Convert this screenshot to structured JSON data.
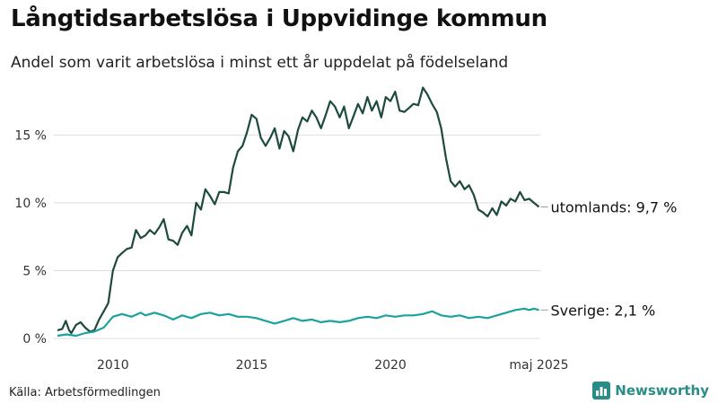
{
  "title": "Långtidsarbetslösa i Uppvidinge kommun",
  "subtitle": "Andel som varit arbetslösa i minst ett år uppdelat på födelseland",
  "source": "Källa: Arbetsförmedlingen",
  "brand": {
    "name": "Newsworthy",
    "icon": "bar-chart-logo-icon"
  },
  "colors": {
    "utomlands": "#1d4a3f",
    "sverige": "#1aa39a",
    "grid": "#dddddd",
    "brand": "#2a8c86"
  },
  "chart_data": {
    "type": "line",
    "ylim": [
      0,
      19
    ],
    "yticks": [
      {
        "value": 0,
        "label": "0 %"
      },
      {
        "value": 5,
        "label": "5 %"
      },
      {
        "value": 10,
        "label": "10 %"
      },
      {
        "value": 15,
        "label": "15 %"
      }
    ],
    "xticks": [
      {
        "value": 2010,
        "label": "2010"
      },
      {
        "value": 2015,
        "label": "2015"
      },
      {
        "value": 2020,
        "label": "2020"
      },
      {
        "value": 2025.35,
        "label": "maj 2025"
      }
    ],
    "xlim": [
      2008.0,
      2025.4
    ],
    "grid": "horizontal",
    "series": [
      {
        "name": "utomlands",
        "end_label": "utomlands: 9,7 %",
        "color": "#1d4a3f",
        "points": [
          [
            2008.0,
            0.6
          ],
          [
            2008.17,
            0.7
          ],
          [
            2008.3,
            1.3
          ],
          [
            2008.42,
            0.6
          ],
          [
            2008.5,
            0.4
          ],
          [
            2008.67,
            1.0
          ],
          [
            2008.83,
            1.2
          ],
          [
            2009.0,
            0.8
          ],
          [
            2009.17,
            0.5
          ],
          [
            2009.33,
            0.6
          ],
          [
            2009.5,
            1.4
          ],
          [
            2009.67,
            2.0
          ],
          [
            2009.83,
            2.6
          ],
          [
            2010.0,
            5.0
          ],
          [
            2010.17,
            6.0
          ],
          [
            2010.33,
            6.3
          ],
          [
            2010.5,
            6.6
          ],
          [
            2010.67,
            6.7
          ],
          [
            2010.83,
            8.0
          ],
          [
            2011.0,
            7.4
          ],
          [
            2011.17,
            7.6
          ],
          [
            2011.33,
            8.0
          ],
          [
            2011.5,
            7.7
          ],
          [
            2011.67,
            8.2
          ],
          [
            2011.83,
            8.8
          ],
          [
            2012.0,
            7.3
          ],
          [
            2012.17,
            7.2
          ],
          [
            2012.33,
            6.9
          ],
          [
            2012.5,
            7.8
          ],
          [
            2012.67,
            8.3
          ],
          [
            2012.83,
            7.6
          ],
          [
            2013.0,
            10.0
          ],
          [
            2013.17,
            9.5
          ],
          [
            2013.33,
            11.0
          ],
          [
            2013.5,
            10.5
          ],
          [
            2013.67,
            9.9
          ],
          [
            2013.83,
            10.8
          ],
          [
            2014.0,
            10.8
          ],
          [
            2014.17,
            10.7
          ],
          [
            2014.33,
            12.6
          ],
          [
            2014.5,
            13.8
          ],
          [
            2014.67,
            14.2
          ],
          [
            2014.83,
            15.2
          ],
          [
            2015.0,
            16.5
          ],
          [
            2015.17,
            16.2
          ],
          [
            2015.33,
            14.8
          ],
          [
            2015.5,
            14.2
          ],
          [
            2015.67,
            14.8
          ],
          [
            2015.83,
            15.5
          ],
          [
            2016.0,
            14.0
          ],
          [
            2016.17,
            15.3
          ],
          [
            2016.33,
            14.9
          ],
          [
            2016.5,
            13.8
          ],
          [
            2016.67,
            15.4
          ],
          [
            2016.83,
            16.3
          ],
          [
            2017.0,
            16.0
          ],
          [
            2017.17,
            16.8
          ],
          [
            2017.33,
            16.3
          ],
          [
            2017.5,
            15.5
          ],
          [
            2017.67,
            16.5
          ],
          [
            2017.83,
            17.5
          ],
          [
            2018.0,
            17.1
          ],
          [
            2018.17,
            16.3
          ],
          [
            2018.33,
            17.1
          ],
          [
            2018.5,
            15.5
          ],
          [
            2018.67,
            16.4
          ],
          [
            2018.83,
            17.3
          ],
          [
            2019.0,
            16.6
          ],
          [
            2019.17,
            17.8
          ],
          [
            2019.33,
            16.8
          ],
          [
            2019.5,
            17.5
          ],
          [
            2019.67,
            16.3
          ],
          [
            2019.83,
            17.8
          ],
          [
            2020.0,
            17.5
          ],
          [
            2020.17,
            18.2
          ],
          [
            2020.33,
            16.8
          ],
          [
            2020.5,
            16.7
          ],
          [
            2020.67,
            17.0
          ],
          [
            2020.83,
            17.3
          ],
          [
            2021.0,
            17.2
          ],
          [
            2021.17,
            18.5
          ],
          [
            2021.33,
            18.0
          ],
          [
            2021.5,
            17.3
          ],
          [
            2021.67,
            16.7
          ],
          [
            2021.83,
            15.5
          ],
          [
            2022.0,
            13.3
          ],
          [
            2022.17,
            11.6
          ],
          [
            2022.33,
            11.2
          ],
          [
            2022.5,
            11.6
          ],
          [
            2022.67,
            11.0
          ],
          [
            2022.83,
            11.3
          ],
          [
            2023.0,
            10.6
          ],
          [
            2023.17,
            9.5
          ],
          [
            2023.33,
            9.3
          ],
          [
            2023.5,
            9.0
          ],
          [
            2023.67,
            9.6
          ],
          [
            2023.83,
            9.1
          ],
          [
            2024.0,
            10.1
          ],
          [
            2024.17,
            9.8
          ],
          [
            2024.33,
            10.3
          ],
          [
            2024.5,
            10.1
          ],
          [
            2024.67,
            10.8
          ],
          [
            2024.83,
            10.2
          ],
          [
            2025.0,
            10.3
          ],
          [
            2025.17,
            10.0
          ],
          [
            2025.35,
            9.7
          ]
        ]
      },
      {
        "name": "Sverige",
        "end_label": "Sverige: 2,1 %",
        "color": "#1aa39a",
        "points": [
          [
            2008.0,
            0.2
          ],
          [
            2008.33,
            0.3
          ],
          [
            2008.67,
            0.2
          ],
          [
            2009.0,
            0.4
          ],
          [
            2009.33,
            0.5
          ],
          [
            2009.67,
            0.8
          ],
          [
            2009.83,
            1.2
          ],
          [
            2010.0,
            1.6
          ],
          [
            2010.33,
            1.8
          ],
          [
            2010.67,
            1.6
          ],
          [
            2011.0,
            1.9
          ],
          [
            2011.17,
            1.7
          ],
          [
            2011.5,
            1.9
          ],
          [
            2011.83,
            1.7
          ],
          [
            2012.17,
            1.4
          ],
          [
            2012.5,
            1.7
          ],
          [
            2012.83,
            1.5
          ],
          [
            2013.17,
            1.8
          ],
          [
            2013.5,
            1.9
          ],
          [
            2013.83,
            1.7
          ],
          [
            2014.17,
            1.8
          ],
          [
            2014.5,
            1.6
          ],
          [
            2014.83,
            1.6
          ],
          [
            2015.17,
            1.5
          ],
          [
            2015.5,
            1.3
          ],
          [
            2015.83,
            1.1
          ],
          [
            2016.17,
            1.3
          ],
          [
            2016.5,
            1.5
          ],
          [
            2016.83,
            1.3
          ],
          [
            2017.17,
            1.4
          ],
          [
            2017.5,
            1.2
          ],
          [
            2017.83,
            1.3
          ],
          [
            2018.17,
            1.2
          ],
          [
            2018.5,
            1.3
          ],
          [
            2018.83,
            1.5
          ],
          [
            2019.17,
            1.6
          ],
          [
            2019.5,
            1.5
          ],
          [
            2019.83,
            1.7
          ],
          [
            2020.17,
            1.6
          ],
          [
            2020.5,
            1.7
          ],
          [
            2020.83,
            1.7
          ],
          [
            2021.17,
            1.8
          ],
          [
            2021.5,
            2.0
          ],
          [
            2021.83,
            1.7
          ],
          [
            2022.17,
            1.6
          ],
          [
            2022.5,
            1.7
          ],
          [
            2022.83,
            1.5
          ],
          [
            2023.17,
            1.6
          ],
          [
            2023.5,
            1.5
          ],
          [
            2023.83,
            1.7
          ],
          [
            2024.17,
            1.9
          ],
          [
            2024.5,
            2.1
          ],
          [
            2024.83,
            2.2
          ],
          [
            2025.0,
            2.1
          ],
          [
            2025.17,
            2.2
          ],
          [
            2025.35,
            2.1
          ]
        ]
      }
    ]
  }
}
